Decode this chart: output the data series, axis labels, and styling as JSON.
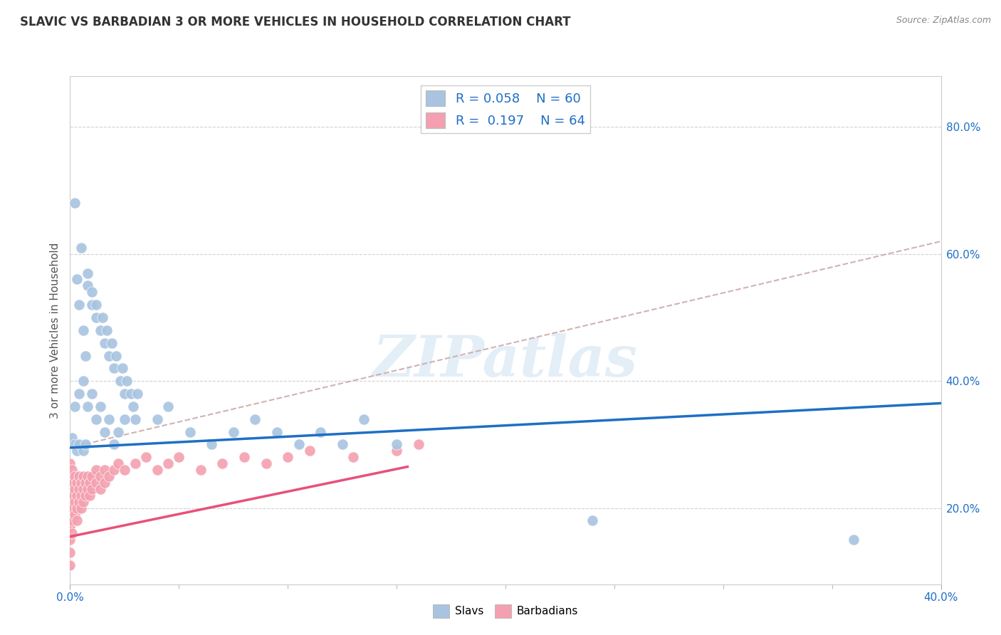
{
  "title": "SLAVIC VS BARBADIAN 3 OR MORE VEHICLES IN HOUSEHOLD CORRELATION CHART",
  "source": "Source: ZipAtlas.com",
  "ylabel": "3 or more Vehicles in Household",
  "ytick_values": [
    0.2,
    0.4,
    0.6,
    0.8
  ],
  "xmin": 0.0,
  "xmax": 0.4,
  "ymin": 0.08,
  "ymax": 0.88,
  "legend_slavs_R": "0.058",
  "legend_slavs_N": "60",
  "legend_barbadians_R": "0.197",
  "legend_barbadians_N": "64",
  "watermark": "ZIPatlas",
  "slavs_color": "#a8c4e0",
  "barbadians_color": "#f4a0b0",
  "trendline_slavs_color": "#1e6fc5",
  "trendline_barbadians_color": "#e8507a",
  "trendline_dashed_color": "#ccaaaa",
  "slavs_scatter": [
    [
      0.002,
      0.68
    ],
    [
      0.005,
      0.61
    ],
    [
      0.008,
      0.55
    ],
    [
      0.008,
      0.57
    ],
    [
      0.01,
      0.52
    ],
    [
      0.01,
      0.54
    ],
    [
      0.012,
      0.5
    ],
    [
      0.012,
      0.52
    ],
    [
      0.014,
      0.48
    ],
    [
      0.015,
      0.5
    ],
    [
      0.016,
      0.46
    ],
    [
      0.017,
      0.48
    ],
    [
      0.018,
      0.44
    ],
    [
      0.019,
      0.46
    ],
    [
      0.02,
      0.42
    ],
    [
      0.021,
      0.44
    ],
    [
      0.023,
      0.4
    ],
    [
      0.024,
      0.42
    ],
    [
      0.025,
      0.38
    ],
    [
      0.026,
      0.4
    ],
    [
      0.028,
      0.38
    ],
    [
      0.029,
      0.36
    ],
    [
      0.03,
      0.34
    ],
    [
      0.031,
      0.38
    ],
    [
      0.003,
      0.56
    ],
    [
      0.004,
      0.52
    ],
    [
      0.006,
      0.48
    ],
    [
      0.007,
      0.44
    ],
    [
      0.002,
      0.36
    ],
    [
      0.004,
      0.38
    ],
    [
      0.006,
      0.4
    ],
    [
      0.008,
      0.36
    ],
    [
      0.01,
      0.38
    ],
    [
      0.012,
      0.34
    ],
    [
      0.014,
      0.36
    ],
    [
      0.016,
      0.32
    ],
    [
      0.018,
      0.34
    ],
    [
      0.02,
      0.3
    ],
    [
      0.022,
      0.32
    ],
    [
      0.025,
      0.34
    ],
    [
      0.001,
      0.31
    ],
    [
      0.002,
      0.3
    ],
    [
      0.003,
      0.29
    ],
    [
      0.004,
      0.3
    ],
    [
      0.006,
      0.29
    ],
    [
      0.007,
      0.3
    ],
    [
      0.04,
      0.34
    ],
    [
      0.045,
      0.36
    ],
    [
      0.055,
      0.32
    ],
    [
      0.065,
      0.3
    ],
    [
      0.075,
      0.32
    ],
    [
      0.085,
      0.34
    ],
    [
      0.095,
      0.32
    ],
    [
      0.105,
      0.3
    ],
    [
      0.115,
      0.32
    ],
    [
      0.125,
      0.3
    ],
    [
      0.135,
      0.34
    ],
    [
      0.15,
      0.3
    ],
    [
      0.24,
      0.18
    ],
    [
      0.36,
      0.15
    ]
  ],
  "barbadians_scatter": [
    [
      0.0,
      0.27
    ],
    [
      0.0,
      0.25
    ],
    [
      0.0,
      0.23
    ],
    [
      0.0,
      0.21
    ],
    [
      0.0,
      0.19
    ],
    [
      0.0,
      0.17
    ],
    [
      0.0,
      0.15
    ],
    [
      0.0,
      0.13
    ],
    [
      0.0,
      0.11
    ],
    [
      0.001,
      0.26
    ],
    [
      0.001,
      0.24
    ],
    [
      0.001,
      0.22
    ],
    [
      0.001,
      0.2
    ],
    [
      0.001,
      0.18
    ],
    [
      0.001,
      0.16
    ],
    [
      0.002,
      0.25
    ],
    [
      0.002,
      0.23
    ],
    [
      0.002,
      0.21
    ],
    [
      0.002,
      0.19
    ],
    [
      0.003,
      0.24
    ],
    [
      0.003,
      0.22
    ],
    [
      0.003,
      0.2
    ],
    [
      0.003,
      0.18
    ],
    [
      0.004,
      0.25
    ],
    [
      0.004,
      0.23
    ],
    [
      0.004,
      0.21
    ],
    [
      0.005,
      0.24
    ],
    [
      0.005,
      0.22
    ],
    [
      0.005,
      0.2
    ],
    [
      0.006,
      0.25
    ],
    [
      0.006,
      0.23
    ],
    [
      0.006,
      0.21
    ],
    [
      0.007,
      0.24
    ],
    [
      0.007,
      0.22
    ],
    [
      0.008,
      0.25
    ],
    [
      0.008,
      0.23
    ],
    [
      0.009,
      0.24
    ],
    [
      0.009,
      0.22
    ],
    [
      0.01,
      0.25
    ],
    [
      0.01,
      0.23
    ],
    [
      0.012,
      0.26
    ],
    [
      0.012,
      0.24
    ],
    [
      0.014,
      0.25
    ],
    [
      0.014,
      0.23
    ],
    [
      0.016,
      0.26
    ],
    [
      0.016,
      0.24
    ],
    [
      0.018,
      0.25
    ],
    [
      0.02,
      0.26
    ],
    [
      0.022,
      0.27
    ],
    [
      0.025,
      0.26
    ],
    [
      0.03,
      0.27
    ],
    [
      0.035,
      0.28
    ],
    [
      0.04,
      0.26
    ],
    [
      0.045,
      0.27
    ],
    [
      0.05,
      0.28
    ],
    [
      0.06,
      0.26
    ],
    [
      0.07,
      0.27
    ],
    [
      0.08,
      0.28
    ],
    [
      0.09,
      0.27
    ],
    [
      0.1,
      0.28
    ],
    [
      0.11,
      0.29
    ],
    [
      0.13,
      0.28
    ],
    [
      0.15,
      0.29
    ],
    [
      0.16,
      0.3
    ]
  ],
  "slavs_trend_x": [
    0.0,
    0.4
  ],
  "slavs_trend_y": [
    0.295,
    0.365
  ],
  "barbadians_trend_x": [
    0.0,
    0.155
  ],
  "barbadians_trend_y": [
    0.155,
    0.265
  ],
  "dashed_trend_x": [
    0.0,
    0.4
  ],
  "dashed_trend_y": [
    0.295,
    0.62
  ]
}
